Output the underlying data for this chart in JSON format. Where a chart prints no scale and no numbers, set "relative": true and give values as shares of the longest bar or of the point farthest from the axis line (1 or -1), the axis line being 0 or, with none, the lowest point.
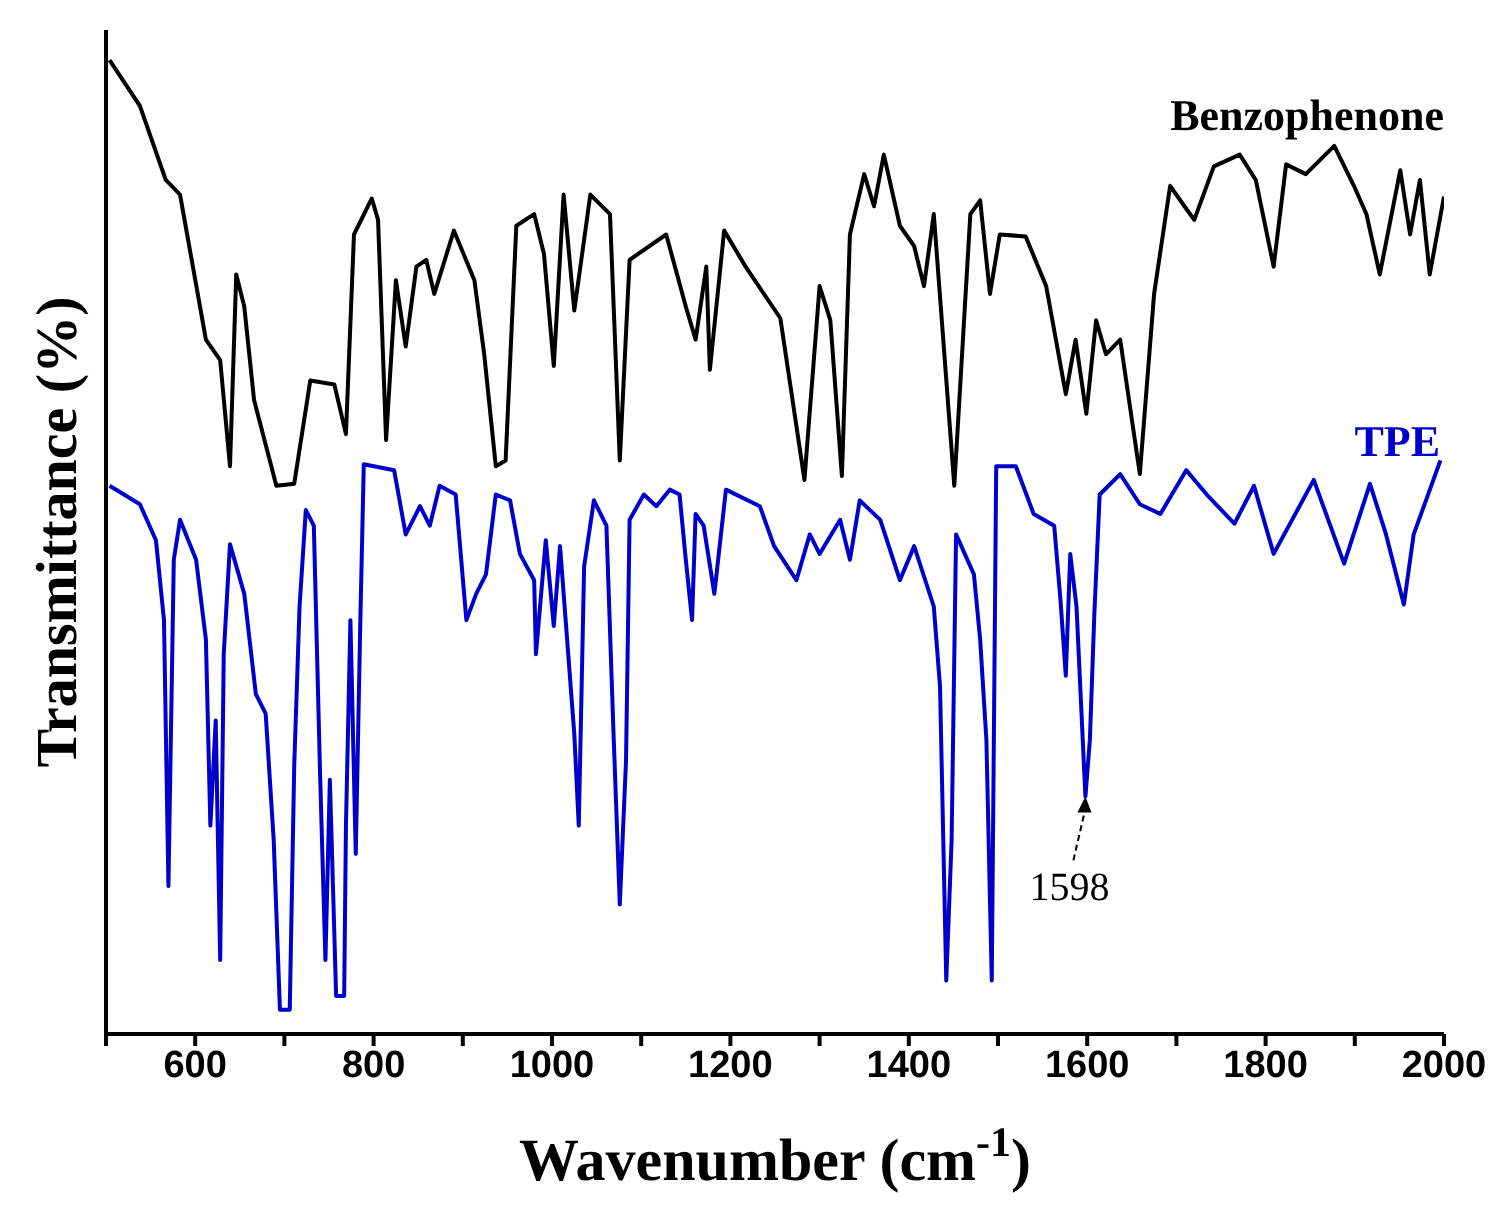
{
  "chart_data": {
    "type": "line",
    "relative": true,
    "xlabel": "Wavenumber (cm$^{-1}$)",
    "ylabel": "Transmittance (%)",
    "xlim": [
      500,
      2000
    ],
    "xticks": [
      {
        "value": 500,
        "label": null
      },
      600,
      {
        "value": 700,
        "label": null
      },
      800,
      {
        "value": 900,
        "label": null
      },
      1000,
      {
        "value": 1100,
        "label": null
      },
      1200,
      {
        "value": 1300,
        "label": null
      },
      1400,
      {
        "value": 1500,
        "label": null
      },
      1600,
      {
        "value": 1700,
        "label": null
      },
      1800,
      {
        "value": 1900,
        "label": null
      },
      2000
    ],
    "annotations": [
      {
        "text": "1598",
        "x": 1598,
        "y": 0.244
      }
    ],
    "series": [
      {
        "name": "Benzophenone",
        "color": "#000000",
        "x": [
          504,
          538,
          567,
          583,
          612,
          628,
          639,
          646,
          655,
          666,
          691,
          711,
          729,
          756,
          769,
          778,
          798,
          805,
          814,
          825,
          836,
          848,
          859,
          868,
          890,
          913,
          924,
          937,
          948,
          960,
          980,
          991,
          1002,
          1013,
          1025,
          1043,
          1065,
          1076,
          1087,
          1128,
          1150,
          1161,
          1173,
          1177,
          1193,
          1217,
          1256,
          1283,
          1300,
          1312,
          1325,
          1334,
          1350,
          1361,
          1372,
          1390,
          1406,
          1417,
          1428,
          1451,
          1469,
          1480,
          1491,
          1502,
          1531,
          1554,
          1576,
          1587,
          1599,
          1610,
          1621,
          1637,
          1659,
          1675,
          1693,
          1709,
          1720,
          1742,
          1771,
          1789,
          1809,
          1823,
          1845,
          1877,
          1899,
          1913,
          1928,
          1951,
          1962,
          1973,
          1984,
          2000
        ],
        "values": [
          1.0,
          0.953,
          0.877,
          0.862,
          0.713,
          0.692,
          0.583,
          0.78,
          0.747,
          0.651,
          0.563,
          0.565,
          0.671,
          0.667,
          0.616,
          0.821,
          0.858,
          0.836,
          0.61,
          0.774,
          0.706,
          0.788,
          0.795,
          0.76,
          0.825,
          0.774,
          0.698,
          0.583,
          0.589,
          0.83,
          0.842,
          0.801,
          0.686,
          0.862,
          0.743,
          0.862,
          0.842,
          0.589,
          0.795,
          0.821,
          0.747,
          0.713,
          0.788,
          0.682,
          0.825,
          0.788,
          0.735,
          0.569,
          0.768,
          0.733,
          0.573,
          0.821,
          0.883,
          0.85,
          0.903,
          0.83,
          0.809,
          0.768,
          0.842,
          0.563,
          0.842,
          0.856,
          0.76,
          0.821,
          0.819,
          0.768,
          0.657,
          0.713,
          0.637,
          0.733,
          0.698,
          0.713,
          0.575,
          0.76,
          0.871,
          0.85,
          0.836,
          0.891,
          0.903,
          0.877,
          0.788,
          0.893,
          0.883,
          0.912,
          0.871,
          0.842,
          0.78,
          0.887,
          0.821,
          0.877,
          0.78,
          0.86
        ]
      },
      {
        "name": "TPE",
        "color": "#0000cc",
        "x": [
          504,
          538,
          556,
          565,
          570,
          576,
          583,
          601,
          612,
          617,
          623,
          628,
          632,
          639,
          655,
          668,
          679,
          688,
          695,
          706,
          711,
          717,
          724,
          733,
          740,
          746,
          751,
          758,
          767,
          769,
          774,
          780,
          785,
          789,
          823,
          836,
          852,
          863,
          874,
          892,
          904,
          915,
          926,
          937,
          953,
          964,
          980,
          982,
          993,
          1002,
          1009,
          1025,
          1030,
          1036,
          1047,
          1061,
          1069,
          1076,
          1083,
          1087,
          1103,
          1117,
          1132,
          1143,
          1150,
          1157,
          1161,
          1170,
          1182,
          1195,
          1233,
          1249,
          1274,
          1289,
          1300,
          1323,
          1334,
          1345,
          1368,
          1390,
          1406,
          1428,
          1435,
          1442,
          1448,
          1453,
          1473,
          1480,
          1487,
          1493,
          1498,
          1520,
          1540,
          1563,
          1570,
          1576,
          1581,
          1588,
          1598,
          1603,
          1608,
          1614,
          1637,
          1659,
          1682,
          1711,
          1734,
          1765,
          1787,
          1809,
          1854,
          1888,
          1917,
          1935,
          1955,
          1966,
          1996
        ],
        "values": [
          0.563,
          0.544,
          0.507,
          0.425,
          0.152,
          0.487,
          0.528,
          0.487,
          0.405,
          0.214,
          0.322,
          0.076,
          0.39,
          0.503,
          0.452,
          0.349,
          0.329,
          0.199,
          0.025,
          0.025,
          0.275,
          0.439,
          0.538,
          0.522,
          0.267,
          0.076,
          0.261,
          0.039,
          0.039,
          0.214,
          0.425,
          0.185,
          0.419,
          0.585,
          0.579,
          0.513,
          0.542,
          0.522,
          0.563,
          0.554,
          0.425,
          0.452,
          0.472,
          0.554,
          0.548,
          0.493,
          0.466,
          0.39,
          0.507,
          0.419,
          0.501,
          0.308,
          0.214,
          0.48,
          0.548,
          0.522,
          0.308,
          0.133,
          0.281,
          0.528,
          0.554,
          0.542,
          0.559,
          0.554,
          0.487,
          0.425,
          0.534,
          0.522,
          0.452,
          0.559,
          0.542,
          0.501,
          0.466,
          0.513,
          0.493,
          0.528,
          0.487,
          0.548,
          0.528,
          0.466,
          0.501,
          0.439,
          0.357,
          0.055,
          0.199,
          0.513,
          0.472,
          0.405,
          0.302,
          0.055,
          0.583,
          0.583,
          0.534,
          0.522,
          0.446,
          0.368,
          0.493,
          0.439,
          0.244,
          0.302,
          0.431,
          0.554,
          0.575,
          0.544,
          0.534,
          0.579,
          0.554,
          0.524,
          0.563,
          0.493,
          0.569,
          0.483,
          0.565,
          0.513,
          0.441,
          0.513,
          0.589
        ]
      }
    ]
  }
}
